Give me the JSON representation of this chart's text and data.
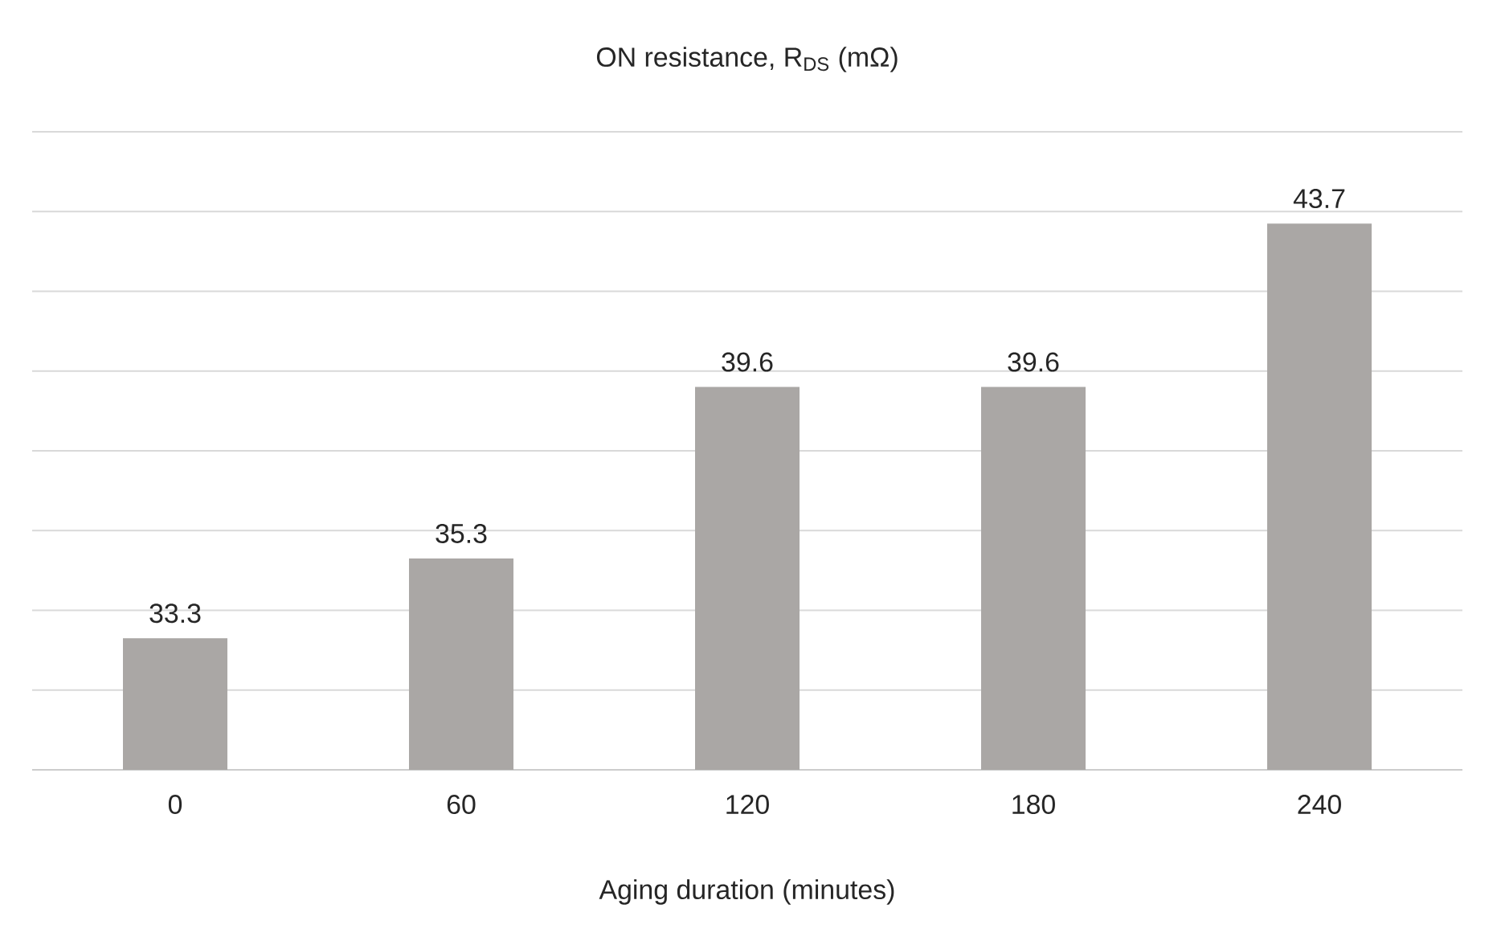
{
  "chart_data": {
    "type": "bar",
    "title": "ON resistance, R$_{DS}$ (mΩ)",
    "xlabel": "Aging duration (minutes)",
    "categories": [
      "0",
      "60",
      "120",
      "180",
      "240"
    ],
    "values": [
      33.3,
      35.3,
      39.6,
      39.6,
      43.7
    ],
    "color": "#aaa7a5",
    "ylim": [
      30,
      46
    ],
    "yticks": [
      {
        "value": 30,
        "label": null
      },
      {
        "value": 32,
        "label": null
      },
      {
        "value": 34,
        "label": null
      },
      {
        "value": 36,
        "label": null
      },
      {
        "value": 38,
        "label": null
      },
      {
        "value": 40,
        "label": null
      },
      {
        "value": 42,
        "label": null
      },
      {
        "value": 44,
        "label": null
      },
      {
        "value": 46,
        "label": null
      }
    ],
    "tick_labels": "x",
    "grid": "y",
    "data_labels": true
  }
}
